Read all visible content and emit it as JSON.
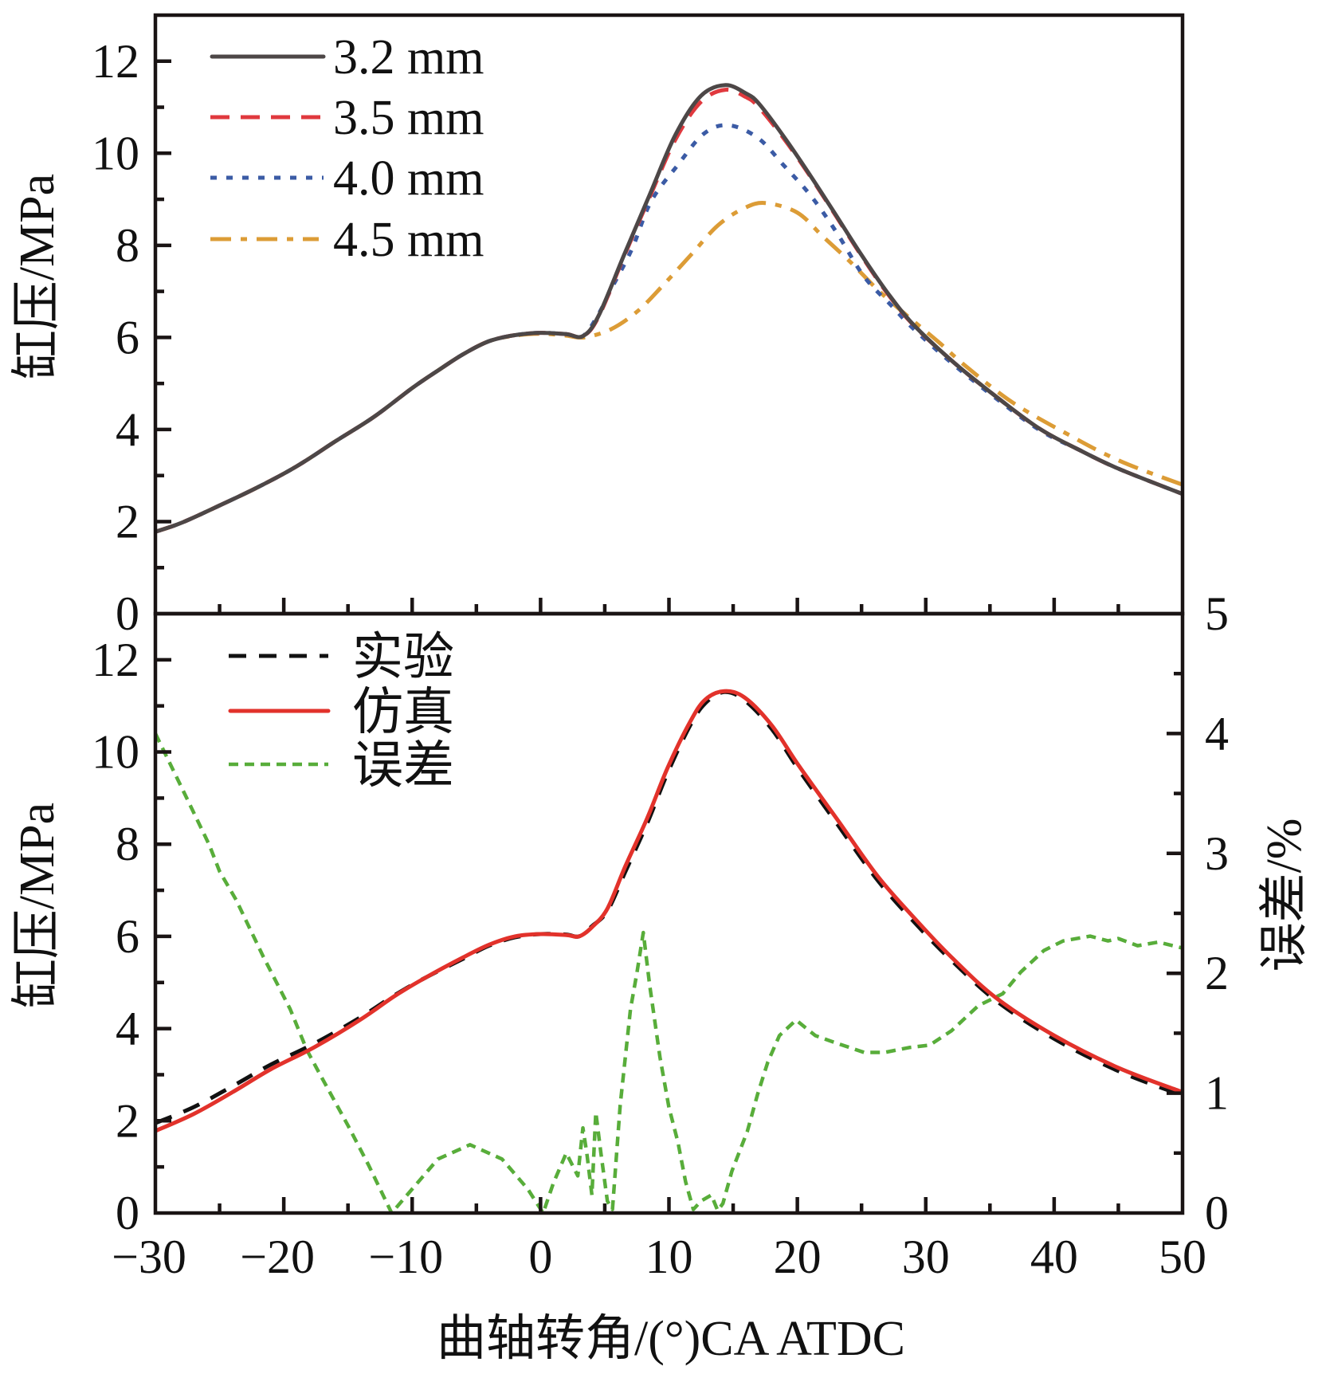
{
  "figure": {
    "top_ylabel": "缸压/MPa",
    "bottom_ylabel": "缸压/MPa",
    "right_ylabel": "误差/%",
    "xlabel": "曲轴转角/(°)CA ATDC"
  },
  "chart_data": [
    {
      "type": "line",
      "panel": "top",
      "title": "",
      "xlabel": "",
      "ylabel": "缸压/MPa",
      "xlim": [
        -30,
        50
      ],
      "ylim": [
        0,
        13
      ],
      "grid": false,
      "xtick_values": [
        -30,
        -20,
        -10,
        0,
        10,
        20,
        30,
        40,
        50
      ],
      "ytick_values": [
        0,
        2,
        4,
        6,
        8,
        10,
        12
      ],
      "ytick_labels": [
        "0",
        "2",
        "4",
        "6",
        "8",
        "10",
        "12"
      ],
      "legend_position": "top-left",
      "series": [
        {
          "name": "3.2 mm",
          "color": "#4d4747",
          "style": "solid",
          "x": [
            -30,
            -28,
            -25,
            -22,
            -19,
            -16,
            -13,
            -10,
            -8,
            -6,
            -4,
            -2,
            0,
            2,
            3.3,
            4.5,
            6.5,
            8.5,
            10.5,
            12.5,
            14.4,
            16,
            17,
            19,
            21,
            23,
            25,
            27,
            29,
            32,
            35,
            38.8,
            42,
            45,
            50
          ],
          "y": [
            1.78,
            1.97,
            2.35,
            2.75,
            3.2,
            3.74,
            4.27,
            4.9,
            5.28,
            5.64,
            5.92,
            6.05,
            6.1,
            6.07,
            6.03,
            6.46,
            7.79,
            9.1,
            10.4,
            11.25,
            11.48,
            11.3,
            11.08,
            10.34,
            9.52,
            8.66,
            7.79,
            6.98,
            6.29,
            5.5,
            4.82,
            4.03,
            3.55,
            3.15,
            2.6
          ]
        },
        {
          "name": "3.5 mm",
          "color": "#e0393e",
          "style": "dash",
          "x": [
            -30,
            -28,
            -25,
            -22,
            -19,
            -16,
            -13,
            -10,
            -8,
            -6,
            -4,
            -2,
            0,
            2,
            3.3,
            4.5,
            6.5,
            8.5,
            10.5,
            12.5,
            14.4,
            16,
            17,
            19,
            21,
            23,
            25,
            27,
            29,
            32,
            35,
            38.8,
            42,
            45,
            50
          ],
          "y": [
            1.78,
            1.97,
            2.35,
            2.75,
            3.2,
            3.74,
            4.27,
            4.9,
            5.28,
            5.64,
            5.92,
            6.05,
            6.1,
            6.07,
            6.03,
            6.44,
            7.76,
            9.05,
            10.3,
            11.12,
            11.38,
            11.22,
            11.0,
            10.3,
            9.5,
            8.64,
            7.77,
            6.96,
            6.28,
            5.5,
            4.82,
            4.03,
            3.55,
            3.15,
            2.6
          ]
        },
        {
          "name": "4.0 mm",
          "color": "#3b5ba5",
          "style": "dot",
          "x": [
            -30,
            -28,
            -25,
            -22,
            -19,
            -16,
            -13,
            -10,
            -8,
            -6,
            -4,
            -2,
            0,
            2,
            3.3,
            4.5,
            5.5,
            7.1,
            8.6,
            10.7,
            12.7,
            14.6,
            16.9,
            18.9,
            21.1,
            23.1,
            25.2,
            27.3,
            29,
            32,
            35,
            38.8,
            42,
            45,
            50
          ],
          "y": [
            1.78,
            1.97,
            2.35,
            2.75,
            3.2,
            3.74,
            4.27,
            4.9,
            5.28,
            5.64,
            5.92,
            6.05,
            6.1,
            6.07,
            6.03,
            6.5,
            7.05,
            7.91,
            8.95,
            9.75,
            10.42,
            10.61,
            10.34,
            9.75,
            9.06,
            8.26,
            7.32,
            6.7,
            6.2,
            5.45,
            4.78,
            4.0,
            3.55,
            3.15,
            2.6
          ]
        },
        {
          "name": "4.5 mm",
          "color": "#dc9c36",
          "style": "dashdot",
          "x": [
            -30,
            -28,
            -25,
            -22,
            -19,
            -16,
            -13,
            -10,
            -8,
            -6,
            -4,
            -2,
            0,
            2,
            3.4,
            5.5,
            7.6,
            9.6,
            11.7,
            13.8,
            15.8,
            17.5,
            20,
            22,
            24.2,
            26.2,
            28.3,
            31,
            33.1,
            36.7,
            40.9,
            45.1,
            50
          ],
          "y": [
            1.78,
            1.97,
            2.35,
            2.75,
            3.2,
            3.74,
            4.27,
            4.9,
            5.28,
            5.64,
            5.92,
            6.04,
            6.08,
            6.04,
            6.0,
            6.18,
            6.58,
            7.15,
            7.79,
            8.43,
            8.8,
            8.92,
            8.71,
            8.19,
            7.62,
            7.05,
            6.53,
            5.9,
            5.38,
            4.6,
            3.92,
            3.32,
            2.8
          ]
        }
      ]
    },
    {
      "type": "line",
      "panel": "bottom",
      "title": "",
      "xlabel": "曲轴转角/(°)CA ATDC",
      "ylabel": "缸压/MPa",
      "ylabel_right": "误差/%",
      "xlim": [
        -30,
        50
      ],
      "ylim": [
        0,
        13
      ],
      "ylim_right": [
        0,
        5
      ],
      "grid": false,
      "xtick_values": [
        -30,
        -20,
        -10,
        0,
        10,
        20,
        30,
        40,
        50
      ],
      "xtick_labels": [
        "−30",
        "−20",
        "−10",
        "0",
        "10",
        "20",
        "30",
        "40",
        "50"
      ],
      "ytick_values": [
        0,
        2,
        4,
        6,
        8,
        10,
        12
      ],
      "ytick_labels": [
        "0",
        "2",
        "4",
        "6",
        "8",
        "10",
        "12"
      ],
      "ytick_right_values": [
        0,
        1,
        2,
        3,
        4,
        5
      ],
      "ytick_right_labels": [
        "0",
        "1",
        "2",
        "3",
        "4",
        "5"
      ],
      "legend_position": "top-left",
      "series": [
        {
          "name": "实验",
          "color": "#111111",
          "style": "dashblack",
          "axis": "left",
          "x": [
            -30,
            -27,
            -24,
            -21,
            -17.6,
            -14,
            -11.4,
            -9,
            -6,
            -4,
            -2,
            0,
            2,
            3,
            4,
            5.2,
            6.6,
            8.3,
            9.9,
            11.6,
            12.8,
            14.3,
            15.9,
            18,
            20.1,
            23.2,
            26.3,
            29.4,
            32,
            35.5,
            40,
            45,
            50
          ],
          "y": [
            1.95,
            2.3,
            2.75,
            3.22,
            3.68,
            4.25,
            4.72,
            5.1,
            5.52,
            5.8,
            5.98,
            6.05,
            6.04,
            6.0,
            6.22,
            6.55,
            7.4,
            8.45,
            9.55,
            10.55,
            11.05,
            11.3,
            11.12,
            10.5,
            9.62,
            8.4,
            7.2,
            6.22,
            5.48,
            4.6,
            3.78,
            3.08,
            2.55
          ]
        },
        {
          "name": "仿真",
          "color": "#e2322b",
          "style": "solid",
          "axis": "left",
          "x": [
            -30,
            -27,
            -24,
            -21,
            -17.6,
            -14,
            -11.4,
            -9,
            -6,
            -4,
            -2,
            0,
            2,
            3,
            4,
            5.2,
            6.6,
            8.3,
            9.9,
            11.6,
            12.8,
            14.3,
            15.9,
            18,
            20.1,
            23.2,
            26.3,
            29.4,
            32,
            35.5,
            40,
            45,
            50
          ],
          "y": [
            1.78,
            2.15,
            2.62,
            3.12,
            3.6,
            4.2,
            4.7,
            5.1,
            5.55,
            5.82,
            6.0,
            6.05,
            6.03,
            6.0,
            6.2,
            6.6,
            7.52,
            8.56,
            9.66,
            10.63,
            11.13,
            11.32,
            11.18,
            10.58,
            9.71,
            8.5,
            7.29,
            6.31,
            5.55,
            4.66,
            3.85,
            3.15,
            2.62
          ]
        },
        {
          "name": "误差",
          "color": "#58ad3a",
          "style": "shortdash",
          "axis": "right",
          "x": [
            -30,
            -28,
            -25.8,
            -25,
            -23.7,
            -21.6,
            -19.5,
            -18.2,
            -17.4,
            -15,
            -13.4,
            -11.6,
            -10,
            -8,
            -5.5,
            -3,
            -1,
            0.2,
            1,
            2,
            2.9,
            3.3,
            3.6,
            4.0,
            4.3,
            4.7,
            5.2,
            5.6,
            6.2,
            7.0,
            7.5,
            8.0,
            8.5,
            9.3,
            10.0,
            10.7,
            11.3,
            11.9,
            12.5,
            13.3,
            13.8,
            14.2,
            14.9,
            16.1,
            16.9,
            17.7,
            18.6,
            19.9,
            21.4,
            22.7,
            25.2,
            26.8,
            28.7,
            30.3,
            32,
            34.1,
            36,
            37.4,
            39.2,
            40.7,
            42.8,
            44.2,
            45,
            46.5,
            48.1,
            50
          ],
          "y": [
            4.0,
            3.56,
            3.07,
            2.85,
            2.61,
            2.14,
            1.7,
            1.36,
            1.2,
            0.73,
            0.4,
            0.0,
            0.2,
            0.45,
            0.57,
            0.45,
            0.2,
            0.0,
            0.25,
            0.5,
            0.31,
            0.71,
            0.5,
            0.15,
            0.84,
            0.5,
            0.1,
            0.03,
            0.9,
            1.7,
            2.0,
            2.34,
            1.9,
            1.3,
            0.88,
            0.59,
            0.26,
            0.03,
            0.1,
            0.15,
            0.02,
            0.08,
            0.35,
            0.68,
            0.99,
            1.26,
            1.48,
            1.61,
            1.48,
            1.43,
            1.34,
            1.34,
            1.38,
            1.4,
            1.52,
            1.73,
            1.83,
            2.01,
            2.19,
            2.27,
            2.31,
            2.27,
            2.29,
            2.23,
            2.26,
            2.21
          ]
        }
      ]
    }
  ]
}
